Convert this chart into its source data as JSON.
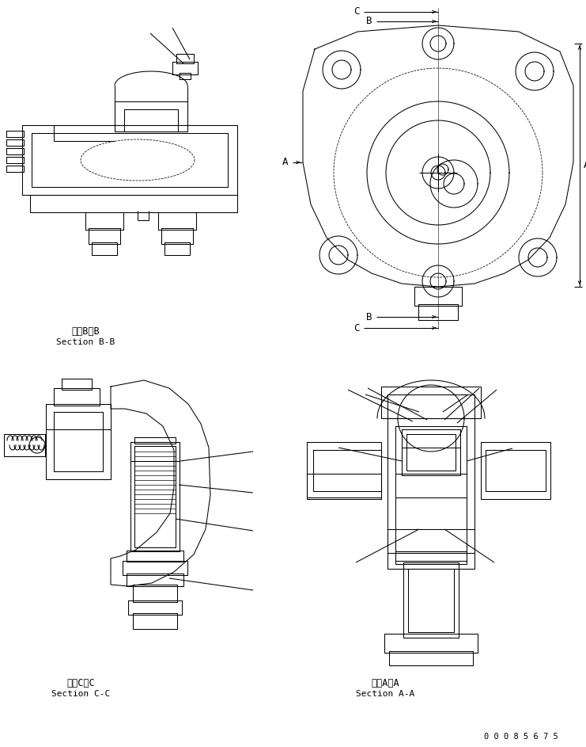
{
  "bg_color": "#ffffff",
  "line_color": "#000000",
  "fig_width": 7.41,
  "fig_height": 9.43,
  "dpi": 100,
  "part_number": "0 0 0 8 5 6 7 5",
  "label_bb_ja": "断面B－B",
  "label_bb_en": "Section B-B",
  "label_cc_ja": "断面C－C",
  "label_cc_en": "Section C-C",
  "label_aa_ja": "断面A－A",
  "label_aa_en": "Section A-A",
  "lw": 0.75
}
